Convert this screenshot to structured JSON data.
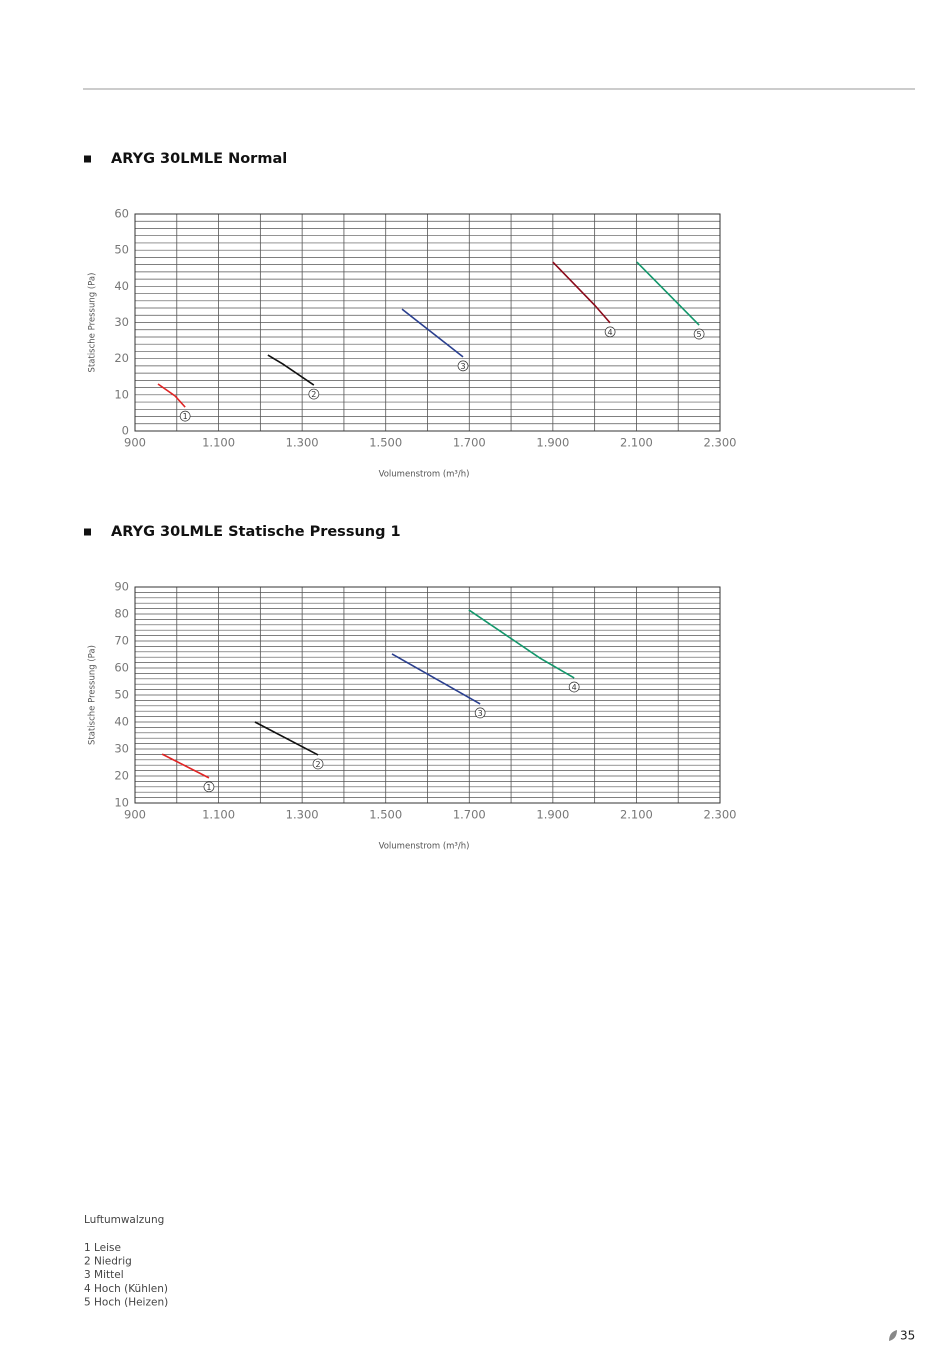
{
  "chart_data": [
    {
      "type": "line",
      "title": "ARYG 30LMLE Normal",
      "ylabel": "Statische Pressung (Pa)",
      "xlabel": "Volumenstrom (m³/h)",
      "xlim": [
        900,
        2300
      ],
      "ylim": [
        0,
        60
      ],
      "xticks": [
        900,
        {
          "value": 1100,
          "label": "1.100"
        },
        {
          "value": 1300,
          "label": "1.300"
        },
        {
          "value": 1500,
          "label": "1.500"
        },
        {
          "value": 1700,
          "label": "1.700"
        },
        {
          "value": 1900,
          "label": "1.900"
        },
        {
          "value": 2100,
          "label": "2.100"
        },
        {
          "value": 2300,
          "label": "2.300"
        }
      ],
      "yticks": [
        0,
        10,
        20,
        30,
        40,
        50,
        60
      ],
      "xgrid": [
        900,
        1000,
        1100,
        1200,
        1300,
        1400,
        1500,
        1600,
        1700,
        1800,
        1900,
        2000,
        2100,
        2200,
        2300
      ],
      "ygrid": [
        0,
        2,
        4,
        6,
        8,
        10,
        12,
        14,
        16,
        18,
        20,
        22,
        24,
        26,
        28,
        30,
        32,
        34,
        36,
        38,
        40,
        42,
        44,
        46,
        48,
        50,
        52,
        54,
        56,
        58,
        60
      ],
      "series": [
        {
          "name": "1",
          "color": "#e02424",
          "x": [
            955,
            996,
            1020
          ],
          "values": [
            13,
            9.7,
            6.6
          ]
        },
        {
          "name": "2",
          "color": "#111111",
          "x": [
            1218,
            1254,
            1328
          ],
          "values": [
            21,
            18.5,
            12.7
          ]
        },
        {
          "name": "3",
          "color": "#2a3f8f",
          "x": [
            1539,
            1685
          ],
          "values": [
            33.7,
            20.5
          ]
        },
        {
          "name": "4",
          "color": "#8b0a1a",
          "x": [
            1900,
            2000,
            2037
          ],
          "values": [
            46.7,
            34.8,
            29.9
          ]
        },
        {
          "name": "5",
          "color": "#13976b",
          "x": [
            2101,
            2250
          ],
          "values": [
            46.7,
            29.3
          ]
        }
      ]
    },
    {
      "type": "line",
      "title": "ARYG 30LMLE Statische Pressung 1",
      "ylabel": "Statische Pressung (Pa)",
      "xlabel": "Volumenstrom (m³/h)",
      "xlim": [
        900,
        2300
      ],
      "ylim": [
        10,
        90
      ],
      "xticks": [
        900,
        {
          "value": 1100,
          "label": "1.100"
        },
        {
          "value": 1300,
          "label": "1.300"
        },
        {
          "value": 1500,
          "label": "1.500"
        },
        {
          "value": 1700,
          "label": "1.700"
        },
        {
          "value": 1900,
          "label": "1.900"
        },
        {
          "value": 2100,
          "label": "2.100"
        },
        {
          "value": 2300,
          "label": "2.300"
        }
      ],
      "yticks": [
        10,
        20,
        30,
        40,
        50,
        60,
        70,
        80,
        90
      ],
      "xgrid": [
        900,
        1000,
        1100,
        1200,
        1300,
        1400,
        1500,
        1600,
        1700,
        1800,
        1900,
        2000,
        2100,
        2200,
        2300
      ],
      "ygrid": [
        10,
        12,
        14,
        16,
        18,
        20,
        22,
        24,
        26,
        28,
        30,
        32,
        34,
        36,
        38,
        40,
        42,
        44,
        46,
        48,
        50,
        52,
        54,
        56,
        58,
        60,
        62,
        64,
        66,
        68,
        70,
        72,
        74,
        76,
        78,
        80,
        82,
        84,
        86,
        88,
        90
      ],
      "series": [
        {
          "name": "1",
          "color": "#e02424",
          "x": [
            965,
            1077
          ],
          "values": [
            28.1,
            19.3
          ]
        },
        {
          "name": "2",
          "color": "#111111",
          "x": [
            1187,
            1338
          ],
          "values": [
            40,
            27.8
          ]
        },
        {
          "name": "3",
          "color": "#2a3f8f",
          "x": [
            1515,
            1726
          ],
          "values": [
            65.2,
            46.7
          ]
        },
        {
          "name": "4",
          "color": "#13976b",
          "x": [
            1699,
            1869,
            1951
          ],
          "values": [
            81.5,
            63.7,
            56.3
          ]
        }
      ]
    }
  ],
  "notes": {
    "title": "Luftumwalzung",
    "items": [
      "1 Leise",
      "2 Niedrig",
      "3 Mittel",
      "4 Hoch (Kühlen)",
      "5 Hoch (Heizen)"
    ]
  },
  "page_number": "35"
}
